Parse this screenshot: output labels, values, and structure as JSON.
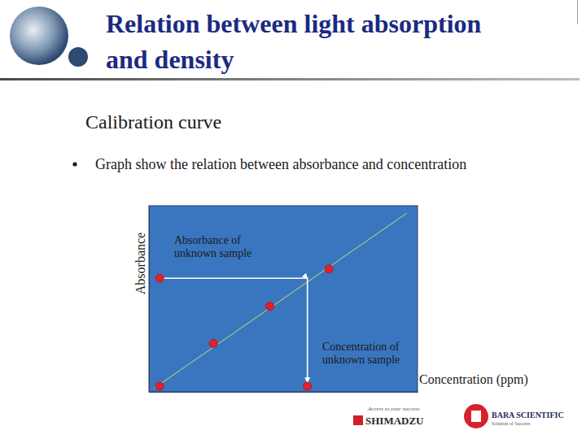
{
  "slide": {
    "title": [
      "Relation between light absorption",
      "and density"
    ],
    "subtitle": "Calibration curve",
    "bullet": "Graph show the relation between absorbance and concentration",
    "logos": {
      "shimadzu_tagline": "Access to your success",
      "shimadzu": "SHIMADZU",
      "bara": "BARA SCIENTIFIC",
      "bara_tagline": "Solution of Success"
    }
  },
  "chart_data": {
    "type": "scatter",
    "y_label": "Absorbance",
    "x_label": "Concentration (ppm)",
    "xlim": [
      0,
      10
    ],
    "ylim": [
      0,
      10
    ],
    "xticks": [],
    "yticks": [],
    "tick_labels": false,
    "grid": false,
    "annotations": [
      {
        "text": [
          "Absorbance of",
          "unknown sample"
        ]
      },
      {
        "text": [
          "Concentration  of",
          "unknown sample"
        ]
      }
    ],
    "series": [
      {
        "type": "line",
        "color": "#c8e05a",
        "x": [
          0.2,
          9.6
        ],
        "values": [
          0.2,
          9.6
        ]
      },
      {
        "type": "line",
        "color": "#ffffff",
        "marker": "arrow",
        "x": [
          0.4,
          5.9,
          5.9
        ],
        "values": [
          6.1,
          6.1,
          0.5
        ]
      },
      {
        "type": "scatter",
        "color": "#e3202a",
        "x": [
          0.4,
          2.4,
          4.5,
          6.7
        ],
        "values": [
          0.3,
          2.6,
          4.6,
          6.6
        ]
      },
      {
        "type": "scatter",
        "color": "#e3202a",
        "x": [
          0.4,
          5.9
        ],
        "values": [
          6.1,
          0.3
        ]
      }
    ]
  }
}
